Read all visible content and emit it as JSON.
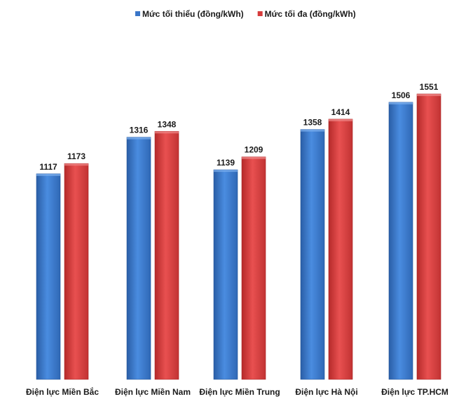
{
  "chart_data": {
    "type": "bar",
    "title": "",
    "xlabel": "",
    "ylabel": "",
    "categories": [
      "Điện lực Miền Bắc",
      "Điện lực Miền Nam",
      "Điện lực Miền Trung",
      "Điện lực Hà Nội",
      "Điện lực TP.HCM"
    ],
    "series": [
      {
        "name": "Mức tối thiểu (đồng/kWh)",
        "color": "#3a76c8",
        "values": [
          1117,
          1316,
          1139,
          1358,
          1506
        ]
      },
      {
        "name": "Mức tối đa (đồng/kWh)",
        "color": "#d63b3b",
        "values": [
          1173,
          1348,
          1209,
          1414,
          1551
        ]
      }
    ],
    "ylim": [
      0,
      1650
    ],
    "grid": false,
    "legend_position": "top-center",
    "data_labels": true
  }
}
